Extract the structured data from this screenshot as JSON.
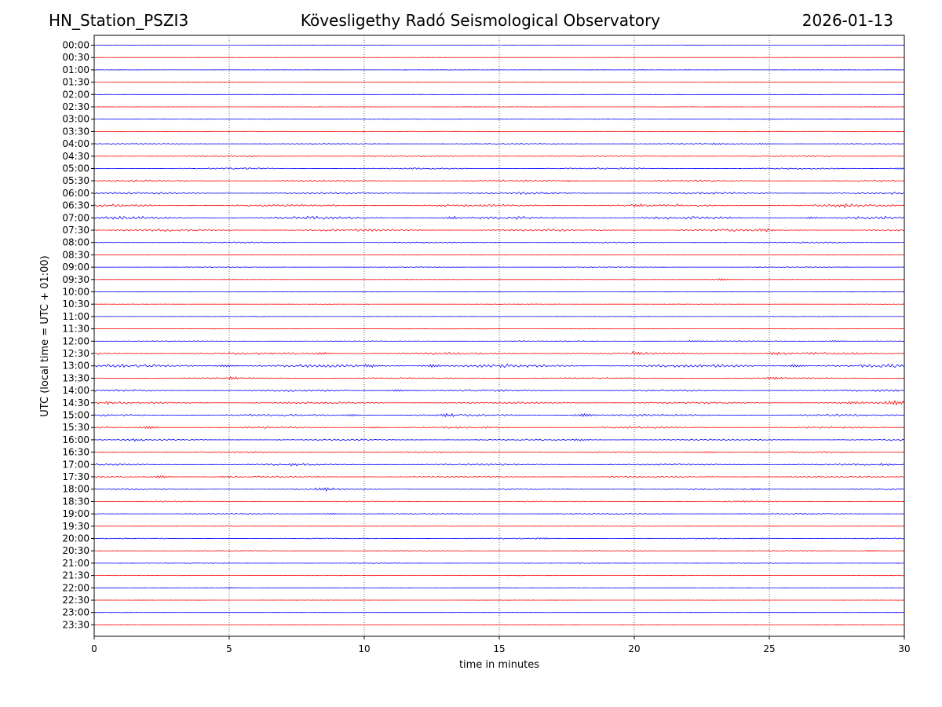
{
  "header": {
    "station": "HN_Station_PSZI3",
    "observatory": "Kövesligethy Radó Seismological Observatory",
    "date": "2026-01-13"
  },
  "chart_data": {
    "type": "line",
    "title": "Kövesligethy Radó Seismological Observatory",
    "xlabel": "time in minutes",
    "ylabel": "UTC (local time = UTC + 01:00)",
    "xlim": [
      0,
      30
    ],
    "x_ticks": [
      0,
      5,
      10,
      15,
      20,
      25,
      30
    ],
    "x_tick_labels": [
      "0",
      "5",
      "10",
      "15",
      "20",
      "25",
      "30"
    ],
    "vertical_gridlines": [
      5,
      10,
      15,
      20,
      25
    ],
    "grid": "dotted vertical at x ticks",
    "series_colors": [
      "#0000ff",
      "#ff0000"
    ],
    "rows": [
      {
        "label": "00:00",
        "activity": 0.1,
        "events": [
          {
            "t": 21.8,
            "a": 0.25
          }
        ]
      },
      {
        "label": "00:30",
        "activity": 0.1,
        "events": []
      },
      {
        "label": "01:00",
        "activity": 0.1,
        "events": []
      },
      {
        "label": "01:30",
        "activity": 0.1,
        "events": []
      },
      {
        "label": "02:00",
        "activity": 0.12,
        "events": [
          {
            "t": 26.0,
            "a": 0.2
          }
        ]
      },
      {
        "label": "02:30",
        "activity": 0.12,
        "events": []
      },
      {
        "label": "03:00",
        "activity": 0.15,
        "events": []
      },
      {
        "label": "03:30",
        "activity": 0.15,
        "events": []
      },
      {
        "label": "04:00",
        "activity": 0.25,
        "events": [
          {
            "t": 22.8,
            "a": 0.35
          },
          {
            "t": 24.5,
            "a": 0.3
          }
        ]
      },
      {
        "label": "04:30",
        "activity": 0.35,
        "events": [
          {
            "t": 9.8,
            "a": 0.3
          }
        ]
      },
      {
        "label": "05:00",
        "activity": 0.45,
        "events": [
          {
            "t": 29.6,
            "a": 0.5
          }
        ]
      },
      {
        "label": "05:30",
        "activity": 0.55,
        "events": [
          {
            "t": 17.3,
            "a": 0.5
          }
        ]
      },
      {
        "label": "06:00",
        "activity": 0.6,
        "events": [
          {
            "t": 16.5,
            "a": 0.45
          }
        ]
      },
      {
        "label": "06:30",
        "activity": 0.7,
        "events": [
          {
            "t": 19.9,
            "a": 0.7
          },
          {
            "t": 27.5,
            "a": 0.6
          }
        ]
      },
      {
        "label": "07:00",
        "activity": 0.8,
        "events": [
          {
            "t": 13.0,
            "a": 0.7
          },
          {
            "t": 26.3,
            "a": 0.6
          }
        ]
      },
      {
        "label": "07:30",
        "activity": 0.65,
        "events": [
          {
            "t": 24.6,
            "a": 0.6
          }
        ]
      },
      {
        "label": "08:00",
        "activity": 0.35,
        "events": []
      },
      {
        "label": "08:30",
        "activity": 0.15,
        "events": []
      },
      {
        "label": "09:00",
        "activity": 0.2,
        "events": []
      },
      {
        "label": "09:30",
        "activity": 0.1,
        "events": [
          {
            "t": 23.0,
            "a": 0.6
          }
        ]
      },
      {
        "label": "10:00",
        "activity": 0.12,
        "events": []
      },
      {
        "label": "10:30",
        "activity": 0.1,
        "events": []
      },
      {
        "label": "11:00",
        "activity": 0.12,
        "events": []
      },
      {
        "label": "11:30",
        "activity": 0.12,
        "events": [
          {
            "t": 12.8,
            "a": 0.25
          },
          {
            "t": 14.2,
            "a": 0.25
          }
        ]
      },
      {
        "label": "12:00",
        "activity": 0.25,
        "events": [
          {
            "t": 21.9,
            "a": 0.45
          },
          {
            "t": 27.2,
            "a": 0.45
          }
        ]
      },
      {
        "label": "12:30",
        "activity": 0.65,
        "events": [
          {
            "t": 8.2,
            "a": 0.6
          },
          {
            "t": 19.8,
            "a": 0.8
          },
          {
            "t": 25.0,
            "a": 0.7
          }
        ]
      },
      {
        "label": "13:00",
        "activity": 0.85,
        "events": [
          {
            "t": 4.6,
            "a": 0.7
          },
          {
            "t": 9.9,
            "a": 0.7
          },
          {
            "t": 12.3,
            "a": 0.8
          },
          {
            "t": 25.7,
            "a": 0.8
          }
        ]
      },
      {
        "label": "13:30",
        "activity": 0.35,
        "events": [
          {
            "t": 4.9,
            "a": 0.8
          },
          {
            "t": 24.9,
            "a": 0.7
          }
        ]
      },
      {
        "label": "14:00",
        "activity": 0.55,
        "events": [
          {
            "t": 11.0,
            "a": 0.6
          },
          {
            "t": 29.9,
            "a": 0.6
          }
        ]
      },
      {
        "label": "14:30",
        "activity": 0.55,
        "events": [
          {
            "t": 0.3,
            "a": 0.6
          },
          {
            "t": 27.8,
            "a": 0.8
          },
          {
            "t": 29.4,
            "a": 1.3
          }
        ]
      },
      {
        "label": "15:00",
        "activity": 0.55,
        "events": [
          {
            "t": 9.3,
            "a": 0.6
          },
          {
            "t": 12.8,
            "a": 0.9
          },
          {
            "t": 17.9,
            "a": 0.9
          }
        ]
      },
      {
        "label": "15:30",
        "activity": 0.5,
        "events": [
          {
            "t": 1.8,
            "a": 0.8
          },
          {
            "t": 10.1,
            "a": 0.5
          }
        ]
      },
      {
        "label": "16:00",
        "activity": 0.45,
        "events": [
          {
            "t": 1.2,
            "a": 0.5
          },
          {
            "t": 17.7,
            "a": 0.5
          }
        ]
      },
      {
        "label": "16:30",
        "activity": 0.4,
        "events": [
          {
            "t": 22.5,
            "a": 0.5
          }
        ]
      },
      {
        "label": "17:00",
        "activity": 0.45,
        "events": [
          {
            "t": 7.1,
            "a": 0.6
          },
          {
            "t": 29.0,
            "a": 0.6
          }
        ]
      },
      {
        "label": "17:30",
        "activity": 0.45,
        "events": [
          {
            "t": 2.2,
            "a": 0.8
          },
          {
            "t": 4.6,
            "a": 0.5
          }
        ]
      },
      {
        "label": "18:00",
        "activity": 0.4,
        "events": [
          {
            "t": 8.3,
            "a": 0.9
          },
          {
            "t": 24.2,
            "a": 0.5
          }
        ]
      },
      {
        "label": "18:30",
        "activity": 0.3,
        "events": [
          {
            "t": 23.9,
            "a": 0.4
          }
        ]
      },
      {
        "label": "19:00",
        "activity": 0.3,
        "events": [
          {
            "t": 8.6,
            "a": 0.4
          }
        ]
      },
      {
        "label": "19:30",
        "activity": 0.15,
        "events": []
      },
      {
        "label": "20:00",
        "activity": 0.3,
        "events": [
          {
            "t": 16.4,
            "a": 0.4
          },
          {
            "t": 24.6,
            "a": 0.4
          }
        ]
      },
      {
        "label": "20:30",
        "activity": 0.3,
        "events": [
          {
            "t": 28.5,
            "a": 0.5
          }
        ]
      },
      {
        "label": "21:00",
        "activity": 0.18,
        "events": []
      },
      {
        "label": "21:30",
        "activity": 0.1,
        "events": []
      },
      {
        "label": "22:00",
        "activity": 0.1,
        "events": [
          {
            "t": 4.8,
            "a": 0.35
          }
        ]
      },
      {
        "label": "22:30",
        "activity": 0.08,
        "events": []
      },
      {
        "label": "23:00",
        "activity": 0.08,
        "events": []
      },
      {
        "label": "23:30",
        "activity": 0.08,
        "events": []
      }
    ]
  }
}
